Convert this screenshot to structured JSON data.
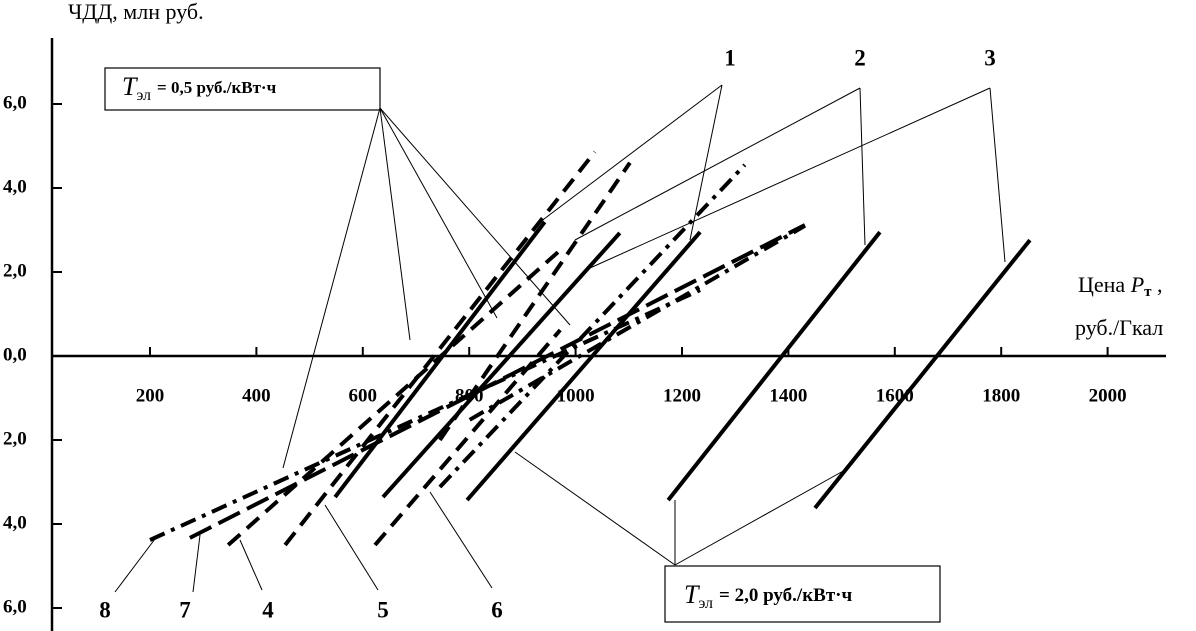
{
  "chart_data": {
    "type": "line",
    "y_label": "ЧДД, млн руб.",
    "x_label": {
      "text": "Цена",
      "symbol": "P",
      "subscript": "т",
      "suffix": ",",
      "line2": "руб./Гкал"
    },
    "xlim": [
      0,
      2100
    ],
    "ylim": [
      -6.5,
      7.5
    ],
    "xticks": [
      200,
      400,
      600,
      800,
      1000,
      1200,
      1400,
      1600,
      1800,
      2000
    ],
    "yticks": [
      {
        "value": 6,
        "label": "6,0"
      },
      {
        "value": 4,
        "label": "4,0"
      },
      {
        "value": 2,
        "label": "2,0"
      },
      {
        "value": 0,
        "label": "0,0"
      },
      {
        "value": -2,
        "label": "2,0"
      },
      {
        "value": -4,
        "label": "4,0"
      },
      {
        "value": -6,
        "label": "6,0"
      }
    ],
    "series": [
      {
        "style": "solid",
        "color": "#000",
        "x": [
          548,
          942
        ],
        "values": [
          -3.36,
          3.19
        ]
      },
      {
        "style": "solid",
        "color": "#000",
        "x": [
          638,
          1083
        ],
        "values": [
          -3.36,
          2.93
        ]
      },
      {
        "style": "solid",
        "color": "#000",
        "x": [
          796,
          1234
        ],
        "values": [
          -3.43,
          2.95
        ]
      },
      {
        "style": "solid",
        "color": "#000",
        "x": [
          1174,
          1572
        ],
        "values": [
          -3.43,
          2.95
        ]
      },
      {
        "style": "solid",
        "color": "#000",
        "x": [
          1450,
          1854
        ],
        "values": [
          -3.62,
          2.76
        ]
      },
      {
        "style": "dash",
        "color": "#000",
        "x": [
          454,
          1036
        ],
        "values": [
          -4.5,
          4.86
        ]
      },
      {
        "style": "dash",
        "color": "#000",
        "x": [
          745,
          1102
        ],
        "values": [
          -2.0,
          4.6
        ]
      },
      {
        "style": "dash",
        "color": "#000",
        "x": [
          347,
          971
        ],
        "values": [
          -4.5,
          2.52
        ]
      },
      {
        "style": "dash",
        "color": "#000",
        "x": [
          623,
          971
        ],
        "values": [
          -4.5,
          0.62
        ]
      },
      {
        "style": "longdash",
        "color": "#000",
        "x": [
          275,
          1431
        ],
        "values": [
          -4.33,
          3.12
        ]
      },
      {
        "style": "dashdot",
        "color": "#000",
        "x": [
          200,
          1234
        ],
        "values": [
          -4.38,
          1.57
        ]
      },
      {
        "style": "dashdot",
        "color": "#000",
        "x": [
          745,
          1318
        ],
        "values": [
          -3.12,
          4.55
        ]
      },
      {
        "style": "dashdot",
        "color": "#000",
        "x": [
          801,
          1431
        ],
        "values": [
          -1.52,
          3.1
        ]
      }
    ],
    "labels": [
      "1",
      "2",
      "3",
      "8",
      "7",
      "4",
      "5",
      "6"
    ],
    "boxes": [
      {
        "symbol": "T",
        "subscript": "эл",
        "text": "= 0,5 руб./кВт·ч"
      },
      {
        "symbol": "T",
        "subscript": "эл",
        "text": "= 2,0 руб./кВт·ч"
      }
    ]
  }
}
